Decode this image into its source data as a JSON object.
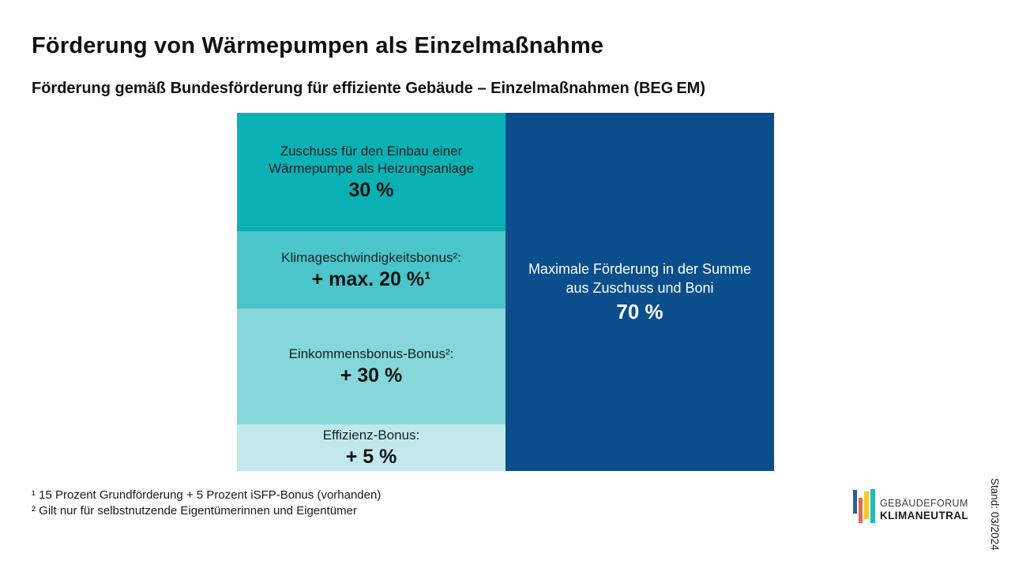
{
  "header": {
    "title": "Förderung von Wärmepumpen als Einzelmaßnahme",
    "subtitle": "Förderung gemäß Bundesförderung für effiziente Gebäude – Einzelmaßnahmen (BEG EM)"
  },
  "chart_data": {
    "type": "bar",
    "title": "Förderung von Wärmepumpen als Einzelmaßnahme",
    "subtitle": "Förderung gemäß Bundesförderung für effiziente Gebäude – Einzelmaßnahmen (BEG EM)",
    "unit": "%",
    "segments": [
      {
        "name": "Zuschuss für den Einbau einer Wärmepumpe als Heizungsanlage",
        "label": "Zuschuss für den Einbau einer\nWärmepumpe als Heizungsanlage",
        "value": 30,
        "value_label": "30 %",
        "color": "#0AB1B5"
      },
      {
        "name": "Klimageschwindigkeitsbonus",
        "label": "Klimageschwindigkeitsbonus²:",
        "value": 20,
        "value_label": "+ max. 20 %¹",
        "color": "#4AC5C9"
      },
      {
        "name": "Einkommensbonus-Bonus",
        "label": "Einkommensbonus-Bonus²:",
        "value": 30,
        "value_label": "+ 30 %",
        "color": "#86D7DA"
      },
      {
        "name": "Effizienz-Bonus",
        "label": "Effizienz-Bonus:",
        "value": 5,
        "value_label": "+ 5 %",
        "color": "#C3E8EC"
      }
    ],
    "total": {
      "name": "Maximale Förderung in der Summe aus Zuschuss und Boni",
      "label": "Maximale Förderung in der Summe\naus Zuschuss und Boni",
      "value": 70,
      "value_label": "70 %",
      "color": "#0A4E8C"
    }
  },
  "footnotes": [
    "¹ 15 Prozent Grundförderung + 5 Prozent iSFP-Bonus (vorhanden)",
    "² Gilt nur für selbstnutzende Eigentümerinnen und Eigentümer"
  ],
  "logo": {
    "line1": "GEBÄUDEFORUM",
    "line2": "KLIMANEUTRAL",
    "bar_colors": [
      "#2B5F9E",
      "#E8674F",
      "#EFC72E",
      "#26B9B9"
    ]
  },
  "stand": "Stand: 03/2024"
}
